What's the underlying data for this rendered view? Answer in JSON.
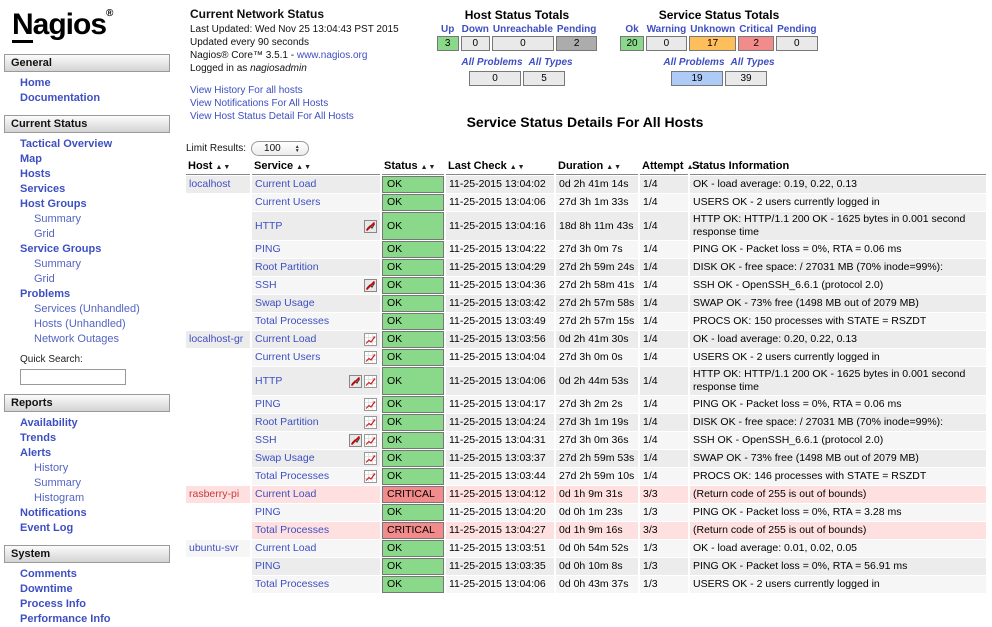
{
  "sidebar": {
    "logo_n": "N",
    "logo_rest": "agios",
    "logo_reg": "®",
    "quick_search_label": "Quick Search:",
    "sections": [
      {
        "title": "General",
        "items": [
          {
            "label": "Home",
            "level": 1
          },
          {
            "label": "Documentation",
            "level": 1
          }
        ]
      },
      {
        "title": "Current Status",
        "has_search": true,
        "items": [
          {
            "label": "Tactical Overview",
            "level": 1
          },
          {
            "label": "Map",
            "level": 1
          },
          {
            "label": "Hosts",
            "level": 1
          },
          {
            "label": "Services",
            "level": 1
          },
          {
            "label": "Host Groups",
            "level": 1
          },
          {
            "label": "Summary",
            "level": 2
          },
          {
            "label": "Grid",
            "level": 2
          },
          {
            "label": "Service Groups",
            "level": 1
          },
          {
            "label": "Summary",
            "level": 2
          },
          {
            "label": "Grid",
            "level": 2
          },
          {
            "label": "Problems",
            "level": 1
          },
          {
            "label": "Services (Unhandled)",
            "level": 2
          },
          {
            "label": "Hosts (Unhandled)",
            "level": 2
          },
          {
            "label": "Network Outages",
            "level": 2
          }
        ]
      },
      {
        "title": "Reports",
        "items": [
          {
            "label": "Availability",
            "level": 1
          },
          {
            "label": "Trends",
            "level": 1
          },
          {
            "label": "Alerts",
            "level": 1
          },
          {
            "label": "History",
            "level": 2
          },
          {
            "label": "Summary",
            "level": 2
          },
          {
            "label": "Histogram",
            "level": 2
          },
          {
            "label": "Notifications",
            "level": 1
          },
          {
            "label": "Event Log",
            "level": 1
          }
        ]
      },
      {
        "title": "System",
        "items": [
          {
            "label": "Comments",
            "level": 1
          },
          {
            "label": "Downtime",
            "level": 1
          },
          {
            "label": "Process Info",
            "level": 1
          },
          {
            "label": "Performance Info",
            "level": 1
          }
        ]
      }
    ]
  },
  "header": {
    "title": "Current Network Status",
    "meta1": "Last Updated: Wed Nov 25 13:04:43 PST 2015",
    "meta2": "Updated every 90 seconds",
    "core_prefix": "Nagios® Core™ 3.5.1 - ",
    "core_link": "www.nagios.org",
    "login_prefix": "Logged in as ",
    "login_user": "nagiosadmin",
    "links": [
      "View History For all hosts",
      "View Notifications For All Hosts",
      "View Host Status Detail For All Hosts"
    ]
  },
  "host_totals": {
    "title": "Host Status Totals",
    "columns": [
      "Up",
      "Down",
      "Unreachable",
      "Pending"
    ],
    "values": [
      "3",
      "0",
      "0",
      "2"
    ],
    "cell_states": [
      "up",
      "none",
      "none",
      "pending2"
    ],
    "all_problems_label": "All Problems",
    "all_types_label": "All Types",
    "all_problems": "0",
    "all_types": "5",
    "all_problems_state": "none",
    "all_types_state": "none"
  },
  "service_totals": {
    "title": "Service Status Totals",
    "columns": [
      "Ok",
      "Warning",
      "Unknown",
      "Critical",
      "Pending"
    ],
    "values": [
      "20",
      "0",
      "17",
      "2",
      "0"
    ],
    "cell_states": [
      "ok",
      "none",
      "unknown",
      "critical",
      "none"
    ],
    "all_problems_label": "All Problems",
    "all_types_label": "All Types",
    "all_problems": "19",
    "all_types": "39",
    "all_problems_state": "problems",
    "all_types_state": "none"
  },
  "main": {
    "title": "Service Status Details For All Hosts",
    "limit_label": "Limit Results:",
    "limit_value": "100",
    "columns": [
      {
        "label": "Host",
        "sortable": true
      },
      {
        "label": "Service",
        "sortable": true
      },
      {
        "label": "Status",
        "sortable": true
      },
      {
        "label": "Last Check",
        "sortable": true
      },
      {
        "label": "Duration",
        "sortable": true
      },
      {
        "label": "Attempt",
        "sortable": true
      },
      {
        "label": "Status Information",
        "sortable": false
      }
    ],
    "colors": {
      "ok_green": "#8AD98A",
      "critical_red": "#F28B8B",
      "unknown_orange": "#FFBE5C",
      "problems_blue": "#AECBF8",
      "critical_row_pink": "#FFE0E0",
      "link_blue": "#3E4FC1"
    },
    "rows": [
      {
        "host": "localhost",
        "host_state": "ok",
        "service": "Current Load",
        "icons": [],
        "status": "OK",
        "state": "ok",
        "last_check": "11-25-2015 13:04:02",
        "duration": "0d 2h 41m 14s",
        "attempt": "1/4",
        "info": "OK - load average: 0.19, 0.22, 0.13"
      },
      {
        "host": "",
        "service": "Current Users",
        "icons": [],
        "status": "OK",
        "state": "ok",
        "last_check": "11-25-2015 13:04:06",
        "duration": "27d 3h 1m 33s",
        "attempt": "1/4",
        "info": "USERS OK - 2 users currently logged in"
      },
      {
        "host": "",
        "service": "HTTP",
        "icons": [
          "notifications-disabled"
        ],
        "status": "OK",
        "state": "ok",
        "last_check": "11-25-2015 13:04:16",
        "duration": "18d 8h 11m 43s",
        "attempt": "1/4",
        "info": "HTTP OK: HTTP/1.1 200 OK - 1625 bytes in 0.001 second response time"
      },
      {
        "host": "",
        "service": "PING",
        "icons": [],
        "status": "OK",
        "state": "ok",
        "last_check": "11-25-2015 13:04:22",
        "duration": "27d 3h 0m 7s",
        "attempt": "1/4",
        "info": "PING OK - Packet loss = 0%, RTA = 0.06 ms"
      },
      {
        "host": "",
        "service": "Root Partition",
        "icons": [],
        "status": "OK",
        "state": "ok",
        "last_check": "11-25-2015 13:04:29",
        "duration": "27d 2h 59m 24s",
        "attempt": "1/4",
        "info": "DISK OK - free space: / 27031 MB (70% inode=99%):"
      },
      {
        "host": "",
        "service": "SSH",
        "icons": [
          "notifications-disabled"
        ],
        "status": "OK",
        "state": "ok",
        "last_check": "11-25-2015 13:04:36",
        "duration": "27d 2h 58m 41s",
        "attempt": "1/4",
        "info": "SSH OK - OpenSSH_6.6.1 (protocol 2.0)"
      },
      {
        "host": "",
        "service": "Swap Usage",
        "icons": [],
        "status": "OK",
        "state": "ok",
        "last_check": "11-25-2015 13:03:42",
        "duration": "27d 2h 57m 58s",
        "attempt": "1/4",
        "info": "SWAP OK - 73% free (1498 MB out of 2079 MB)"
      },
      {
        "host": "",
        "service": "Total Processes",
        "icons": [],
        "status": "OK",
        "state": "ok",
        "last_check": "11-25-2015 13:03:49",
        "duration": "27d 2h 57m 15s",
        "attempt": "1/4",
        "info": "PROCS OK: 150 processes with STATE = RSZDT"
      },
      {
        "host": "localhost-gr",
        "host_state": "ok",
        "service": "Current Load",
        "icons": [
          "perf-graph"
        ],
        "status": "OK",
        "state": "ok",
        "last_check": "11-25-2015 13:03:56",
        "duration": "0d 2h 41m 30s",
        "attempt": "1/4",
        "info": "OK - load average: 0.20, 0.22, 0.13"
      },
      {
        "host": "",
        "service": "Current Users",
        "icons": [
          "perf-graph"
        ],
        "status": "OK",
        "state": "ok",
        "last_check": "11-25-2015 13:04:04",
        "duration": "27d 3h 0m 0s",
        "attempt": "1/4",
        "info": "USERS OK - 2 users currently logged in"
      },
      {
        "host": "",
        "service": "HTTP",
        "icons": [
          "notifications-disabled",
          "perf-graph"
        ],
        "status": "OK",
        "state": "ok",
        "last_check": "11-25-2015 13:04:06",
        "duration": "0d 2h 44m 53s",
        "attempt": "1/4",
        "info": "HTTP OK: HTTP/1.1 200 OK - 1625 bytes in 0.001 second response time"
      },
      {
        "host": "",
        "service": "PING",
        "icons": [
          "perf-graph"
        ],
        "status": "OK",
        "state": "ok",
        "last_check": "11-25-2015 13:04:17",
        "duration": "27d 3h 2m 2s",
        "attempt": "1/4",
        "info": "PING OK - Packet loss = 0%, RTA = 0.06 ms"
      },
      {
        "host": "",
        "service": "Root Partition",
        "icons": [
          "perf-graph"
        ],
        "status": "OK",
        "state": "ok",
        "last_check": "11-25-2015 13:04:24",
        "duration": "27d 3h 1m 19s",
        "attempt": "1/4",
        "info": "DISK OK - free space: / 27031 MB (70% inode=99%):"
      },
      {
        "host": "",
        "service": "SSH",
        "icons": [
          "notifications-disabled",
          "perf-graph"
        ],
        "status": "OK",
        "state": "ok",
        "last_check": "11-25-2015 13:04:31",
        "duration": "27d 3h 0m 36s",
        "attempt": "1/4",
        "info": "SSH OK - OpenSSH_6.6.1 (protocol 2.0)"
      },
      {
        "host": "",
        "service": "Swap Usage",
        "icons": [
          "perf-graph"
        ],
        "status": "OK",
        "state": "ok",
        "last_check": "11-25-2015 13:03:37",
        "duration": "27d 2h 59m 53s",
        "attempt": "1/4",
        "info": "SWAP OK - 73% free (1498 MB out of 2079 MB)"
      },
      {
        "host": "",
        "service": "Total Processes",
        "icons": [
          "perf-graph"
        ],
        "status": "OK",
        "state": "ok",
        "last_check": "11-25-2015 13:03:44",
        "duration": "27d 2h 59m 10s",
        "attempt": "1/4",
        "info": "PROCS OK: 146 processes with STATE = RSZDT"
      },
      {
        "host": "rasberry-pi",
        "host_state": "critical",
        "service": "Current Load",
        "icons": [],
        "status": "CRITICAL",
        "state": "critical",
        "last_check": "11-25-2015 13:04:12",
        "duration": "0d 1h 9m 31s",
        "attempt": "3/3",
        "info": "(Return code of 255 is out of bounds)"
      },
      {
        "host": "",
        "service": "PING",
        "icons": [],
        "status": "OK",
        "state": "ok",
        "last_check": "11-25-2015 13:04:20",
        "duration": "0d 0h 1m 23s",
        "attempt": "1/3",
        "info": "PING OK - Packet loss = 0%, RTA = 3.28 ms"
      },
      {
        "host": "",
        "service": "Total Processes",
        "icons": [],
        "status": "CRITICAL",
        "state": "critical",
        "last_check": "11-25-2015 13:04:27",
        "duration": "0d 1h 9m 16s",
        "attempt": "3/3",
        "info": "(Return code of 255 is out of bounds)"
      },
      {
        "host": "ubuntu-svr",
        "host_state": "ok",
        "service": "Current Load",
        "icons": [],
        "status": "OK",
        "state": "ok",
        "last_check": "11-25-2015 13:03:51",
        "duration": "0d 0h 54m 52s",
        "attempt": "1/3",
        "info": "OK - load average: 0.01, 0.02, 0.05"
      },
      {
        "host": "",
        "service": "PING",
        "icons": [],
        "status": "OK",
        "state": "ok",
        "last_check": "11-25-2015 13:03:35",
        "duration": "0d 0h 10m 8s",
        "attempt": "1/3",
        "info": "PING OK - Packet loss = 0%, RTA = 56.91 ms"
      },
      {
        "host": "",
        "service": "Total Processes",
        "icons": [],
        "status": "OK",
        "state": "ok",
        "last_check": "11-25-2015 13:04:06",
        "duration": "0d 0h 43m 37s",
        "attempt": "1/3",
        "info": "USERS OK - 2 users currently logged in"
      }
    ]
  }
}
